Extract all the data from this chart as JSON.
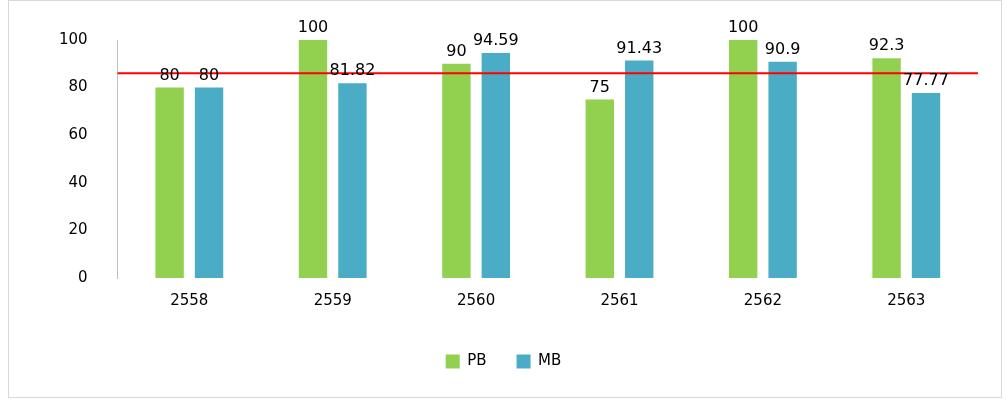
{
  "chart_data": {
    "type": "bar",
    "categories": [
      "2558",
      "2559",
      "2560",
      "2561",
      "2562",
      "2563"
    ],
    "series": [
      {
        "name": "PB",
        "color": "#92d050",
        "values": [
          80,
          100,
          90,
          75,
          100,
          92.3
        ]
      },
      {
        "name": "MB",
        "color": "#4bacc6",
        "values": [
          80,
          81.82,
          94.59,
          91.43,
          90.9,
          77.77
        ]
      }
    ],
    "ylim": [
      0,
      100
    ],
    "yticks": [
      0,
      20,
      40,
      60,
      80,
      100
    ],
    "grid": false,
    "legend": "bottom",
    "data_labels": true,
    "ref_lines": [
      {
        "axis": "y",
        "value": 86,
        "color": "#ff0000"
      }
    ]
  }
}
